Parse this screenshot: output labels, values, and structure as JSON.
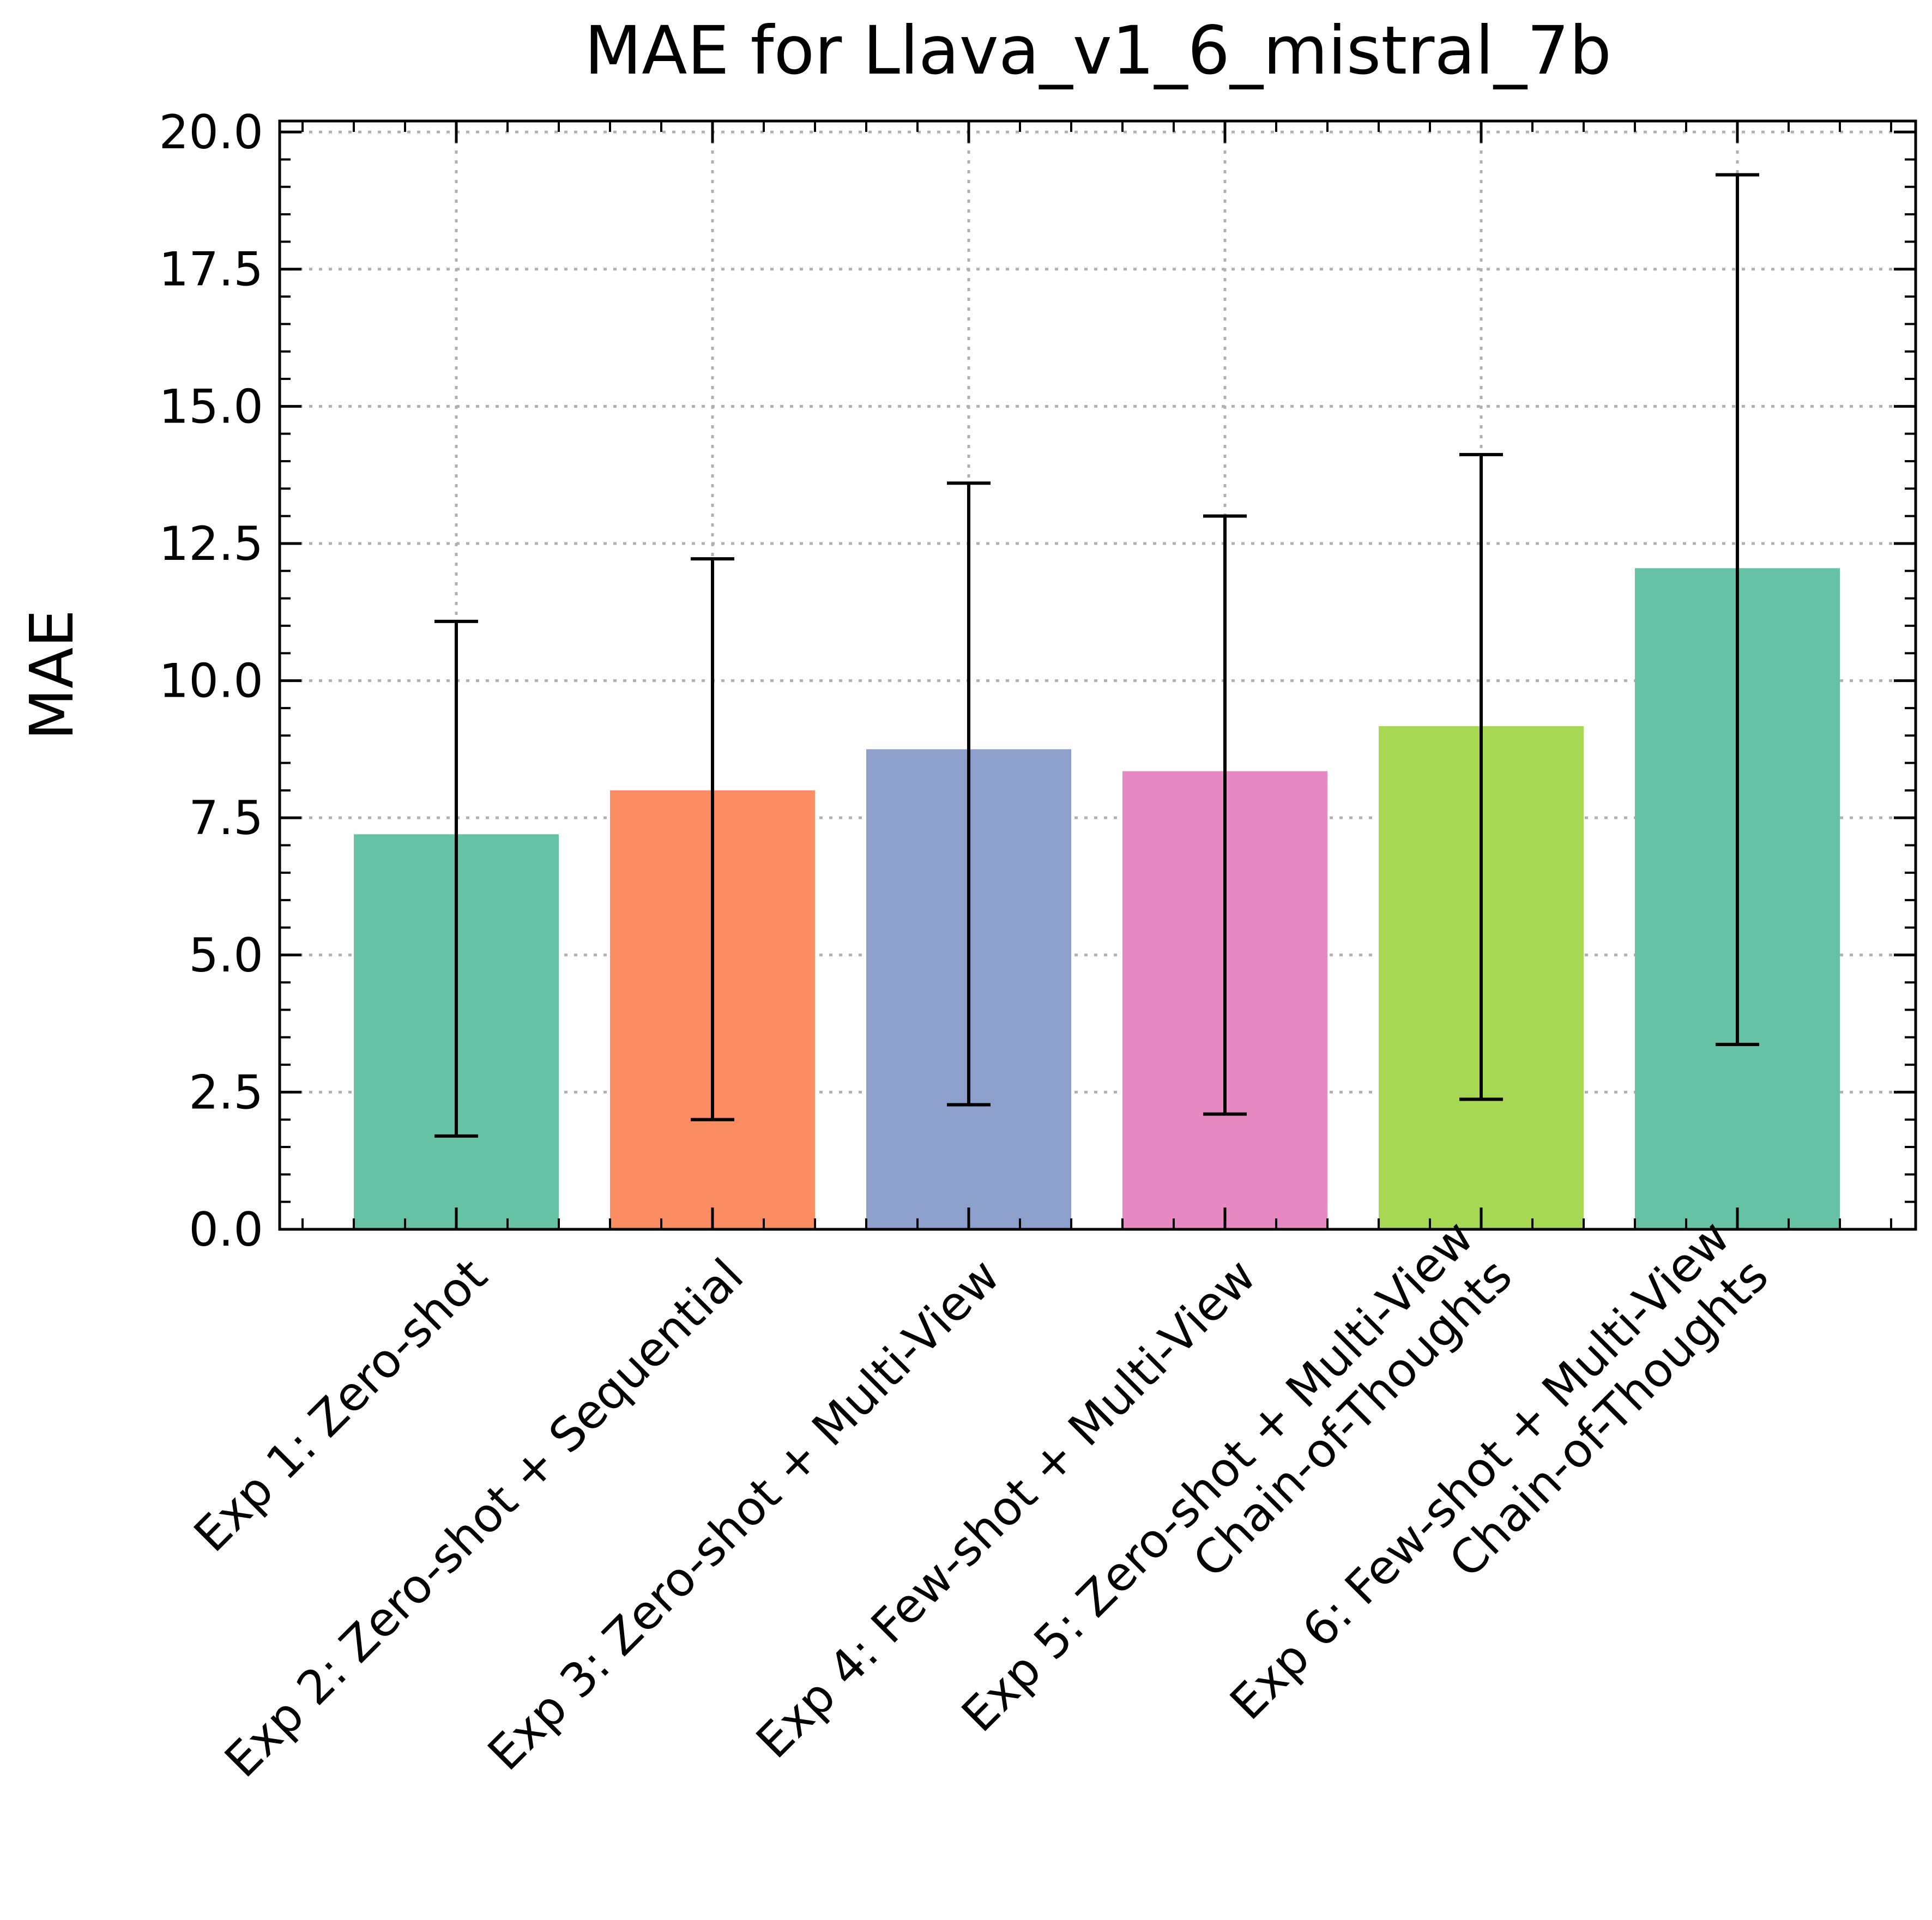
{
  "chart_data": {
    "type": "bar",
    "title": "MAE for Llava_v1_6_mistral_7b",
    "xlabel": "",
    "ylabel": "MAE",
    "ylim": [
      0,
      20.2
    ],
    "yticks": [
      "0.0",
      "2.5",
      "5.0",
      "7.5",
      "10.0",
      "12.5",
      "15.0",
      "17.5",
      "20.0"
    ],
    "grid": true,
    "categories": [
      [
        "Exp 1: Zero-shot"
      ],
      [
        "Exp 2: Zero-shot + Sequential"
      ],
      [
        "Exp 3: Zero-shot + Multi-View"
      ],
      [
        "Exp 4: Few-shot + Multi-View"
      ],
      [
        "Exp 5: Zero-shot + Multi-View",
        "Chain-of-Thoughts"
      ],
      [
        "Exp 6: Few-shot + Multi-View",
        "Chain-of-Thoughts"
      ]
    ],
    "values": [
      7.2,
      8.0,
      8.75,
      8.35,
      9.17,
      12.05
    ],
    "error_low": [
      1.7,
      2.0,
      2.27,
      2.1,
      2.37,
      3.37
    ],
    "error_high": [
      11.08,
      12.22,
      13.6,
      13.0,
      14.12,
      19.22
    ],
    "colors": [
      "#66c2a5",
      "#fc8d62",
      "#8da0cb",
      "#e78ac3",
      "#a6d854",
      "#66c2a5"
    ]
  }
}
